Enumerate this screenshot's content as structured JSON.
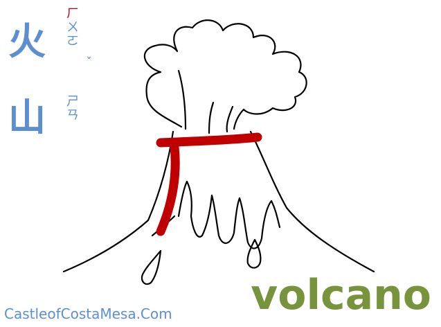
{
  "characters": [
    {
      "hanzi": "火",
      "zhuyin": [
        "ㄏ",
        "ㄨ",
        "ㄛ"
      ],
      "tone": "ˇ"
    },
    {
      "hanzi": "山",
      "zhuyin": [
        "ㄕ",
        "ㄢ"
      ],
      "tone": ""
    }
  ],
  "english": "volcano",
  "credit": "CastleofCostaMesa.Com",
  "colors": {
    "chinese_text": "#5b8fd1",
    "english_text": "#77933c",
    "radical_stroke": "#c00000",
    "drawing": "#000000",
    "background": "#ffffff"
  },
  "icons": {
    "illustration": "volcano-drawing-icon",
    "radical": "radical-han-icon"
  }
}
